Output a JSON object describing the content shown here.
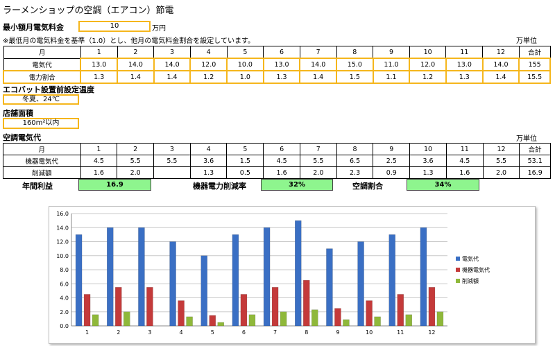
{
  "title": "ラーメンショップの空調（エアコン）節電",
  "min_bill": {
    "label": "最小額月電気料金",
    "value": "10",
    "unit": "万円"
  },
  "note": "※最低月の電気料金を基準（1.0）とし、他月の電気料金割合を設定しています。",
  "unit_label": "万単位",
  "table1": {
    "header": [
      "月",
      "1",
      "2",
      "3",
      "4",
      "5",
      "6",
      "7",
      "8",
      "9",
      "10",
      "11",
      "12",
      "合計"
    ],
    "rows": [
      [
        "電気代",
        "13.0",
        "14.0",
        "14.0",
        "12.0",
        "10.0",
        "13.0",
        "14.0",
        "15.0",
        "11.0",
        "12.0",
        "13.0",
        "14.0",
        "155"
      ],
      [
        "電力割合",
        "1.3",
        "1.4",
        "1.4",
        "1.2",
        "1.0",
        "1.3",
        "1.4",
        "1.5",
        "1.1",
        "1.2",
        "1.3",
        "1.4",
        "15.5"
      ]
    ]
  },
  "ecobat": {
    "label": "エコバット設置前設定温度",
    "value": "冬夏、24℃"
  },
  "store": {
    "label": "店舗面積",
    "value": "160m²以内"
  },
  "ac_title": "空調電気代",
  "unit_label2": "万単位",
  "table2": {
    "header": [
      "月",
      "1",
      "2",
      "3",
      "4",
      "5",
      "6",
      "7",
      "8",
      "9",
      "10",
      "11",
      "12",
      "合計"
    ],
    "rows": [
      [
        "機器電気代",
        "4.5",
        "5.5",
        "5.5",
        "3.6",
        "1.5",
        "4.5",
        "5.5",
        "6.5",
        "2.5",
        "3.6",
        "4.5",
        "5.5",
        "53.1"
      ],
      [
        "削減額",
        "1.6",
        "2.0",
        "",
        "1.3",
        "0.5",
        "1.6",
        "2.0",
        "2.3",
        "0.9",
        "1.3",
        "1.6",
        "2.0",
        "16.9"
      ]
    ]
  },
  "summary": {
    "annual_label": "年間利益",
    "annual_value": "16.9",
    "reduction_label": "機器電力削減率",
    "reduction_value": "32%",
    "ac_ratio_label": "空調割合",
    "ac_ratio_value": "34%"
  },
  "chart_data": {
    "type": "bar",
    "categories": [
      "1",
      "2",
      "3",
      "4",
      "5",
      "6",
      "7",
      "8",
      "9",
      "10",
      "11",
      "12"
    ],
    "series": [
      {
        "name": "電気代",
        "color": "#3a6fc4",
        "values": [
          13.0,
          14.0,
          14.0,
          12.0,
          10.0,
          13.0,
          14.0,
          15.0,
          11.0,
          12.0,
          13.0,
          14.0
        ]
      },
      {
        "name": "機器電気代",
        "color": "#c43a3a",
        "values": [
          4.5,
          5.5,
          5.5,
          3.6,
          1.5,
          4.5,
          5.5,
          6.5,
          2.5,
          3.6,
          4.5,
          5.5
        ]
      },
      {
        "name": "削減額",
        "color": "#8fb83a",
        "values": [
          1.6,
          2.0,
          0,
          1.3,
          0.5,
          1.6,
          2.0,
          2.3,
          0.9,
          1.3,
          1.6,
          2.0
        ]
      }
    ],
    "yticks": [
      "0.0",
      "2.0",
      "4.0",
      "6.0",
      "8.0",
      "10.0",
      "12.0",
      "14.0",
      "16.0"
    ],
    "ylim": [
      0,
      16
    ],
    "legend_position": "right",
    "grid": true
  }
}
